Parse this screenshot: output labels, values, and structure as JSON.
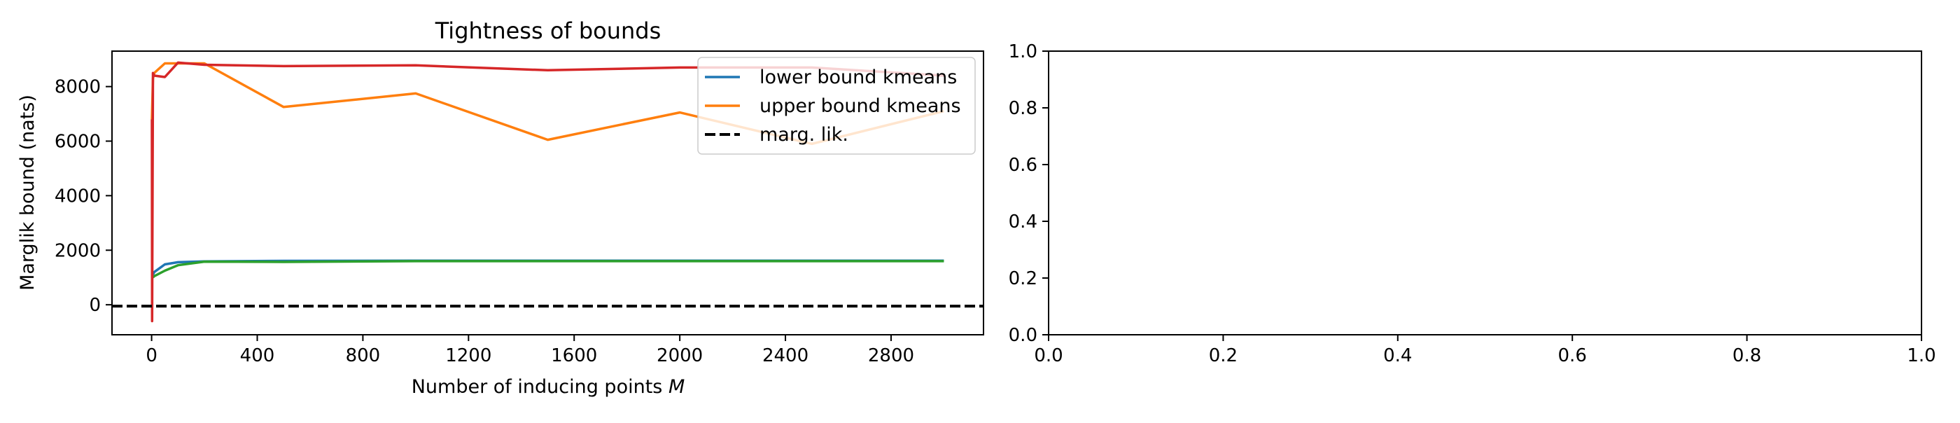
{
  "chart_data": [
    {
      "type": "line",
      "title": "Tightness of bounds",
      "xlabel": "Number of inducing points",
      "xlabel_var": "M",
      "ylabel": "Marglik bound (nats)",
      "xlim": [
        -150,
        3150
      ],
      "ylim": [
        -1100,
        9300
      ],
      "xticks": [
        0,
        400,
        800,
        1200,
        1600,
        2000,
        2400,
        2800
      ],
      "yticks": [
        0,
        2000,
        4000,
        6000,
        8000
      ],
      "grid": false,
      "legend_position": "top-right",
      "legend": [
        {
          "label": "lower bound kmeans",
          "color": "#1f77b4",
          "dash": false
        },
        {
          "label": "upper bound kmeans",
          "color": "#ff7f0e",
          "dash": false
        },
        {
          "label": "marg. lik.",
          "color": "#000000",
          "dash": true
        }
      ],
      "series": [
        {
          "color": "#1f77b4",
          "dashed": false,
          "x": [
            5,
            10,
            50,
            100,
            200,
            500,
            1000,
            1500,
            2000,
            2500,
            3000
          ],
          "y": [
            1100,
            1200,
            1480,
            1560,
            1590,
            1610,
            1615,
            1615,
            1615,
            1615,
            1615
          ]
        },
        {
          "color": "#ff7f0e",
          "dashed": false,
          "x": [
            1,
            5,
            10,
            50,
            100,
            200,
            500,
            1000,
            1500,
            2000,
            2500,
            3000
          ],
          "y": [
            6800,
            8300,
            8500,
            8850,
            8850,
            8850,
            7250,
            7750,
            6050,
            7050,
            5900,
            7100
          ]
        },
        {
          "color": "#2ca02c",
          "dashed": false,
          "x": [
            5,
            10,
            50,
            100,
            200,
            500,
            1000,
            1500,
            2000,
            2500,
            3000
          ],
          "y": [
            1000,
            1050,
            1250,
            1450,
            1580,
            1570,
            1600,
            1600,
            1600,
            1600,
            1600
          ]
        },
        {
          "color": "#d62728",
          "dashed": false,
          "x": [
            1,
            2,
            5,
            10,
            50,
            100,
            200,
            500,
            1000,
            1500,
            2000,
            2500,
            3000
          ],
          "y": [
            6800,
            -600,
            8500,
            8400,
            8350,
            8880,
            8800,
            8750,
            8780,
            8600,
            8700,
            8700,
            8400
          ]
        },
        {
          "name": "marg. lik.",
          "color": "#000000",
          "dashed": true,
          "x": [
            -150,
            3150
          ],
          "y": [
            -50,
            -50
          ]
        }
      ]
    },
    {
      "type": "line",
      "title": "",
      "xlabel": "",
      "ylabel": "",
      "xlim": [
        0,
        1
      ],
      "ylim": [
        0,
        1
      ],
      "xticks": [
        0.0,
        0.2,
        0.4,
        0.6,
        0.8,
        1.0
      ],
      "yticks": [
        0.0,
        0.2,
        0.4,
        0.6,
        0.8,
        1.0
      ],
      "grid": false,
      "series": []
    }
  ]
}
